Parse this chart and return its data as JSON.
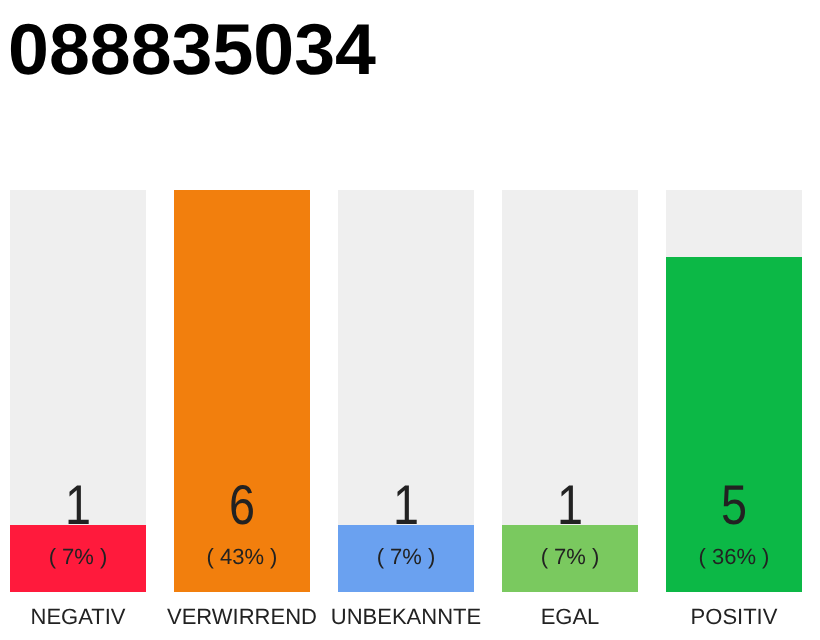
{
  "chart_data": {
    "type": "bar",
    "title": "088835034",
    "categories": [
      "NEGATIV",
      "VERWIRREND",
      "UNBEKANNTE",
      "EGAL",
      "POSITIV"
    ],
    "values": [
      1,
      6,
      1,
      1,
      5
    ],
    "colors": [
      "#ff1a3c",
      "#f27f0d",
      "#6aa1f0",
      "#7ac95f",
      "#0cb846"
    ],
    "data_labels": true,
    "annotations": [
      "( 7% )",
      "( 43% )",
      "( 7% )",
      "( 7% )",
      "( 36% )"
    ]
  }
}
